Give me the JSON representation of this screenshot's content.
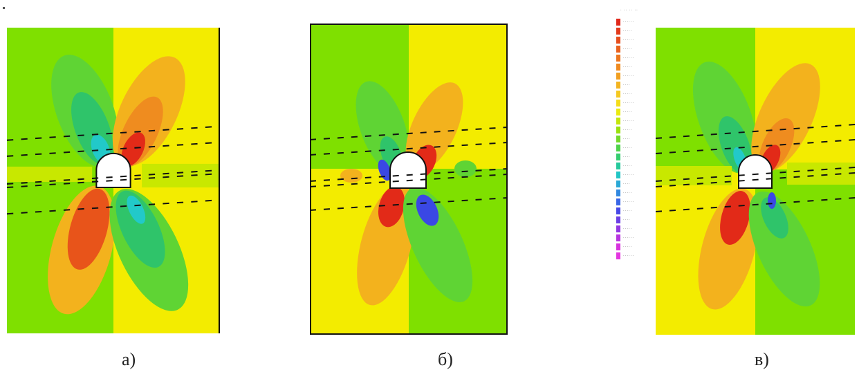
{
  "captions": {
    "a": "а)",
    "b": "б)",
    "c": "в)"
  },
  "colors": {
    "background_left": "#7fe000",
    "background_right": "#f3ec00",
    "yellow": "#f3ec00",
    "yellow_green": "#c8e800",
    "orange_light": "#f3b21d",
    "orange": "#ef8c1f",
    "red_orange": "#e8541a",
    "red": "#e22a18",
    "green": "#5fd434",
    "green_deep": "#2fc46a",
    "cyan": "#22c9c9",
    "blue": "#3a48e4",
    "magenta": "#d832e0",
    "opening": "#ffffff",
    "dashed_line": "#111111"
  },
  "legend": {
    "title": "· ·· ·· ··",
    "items": [
      {
        "color": "#e0281a",
        "label": "······"
      },
      {
        "color": "#e33a1b",
        "label": "·····"
      },
      {
        "color": "#e64d1c",
        "label": "······"
      },
      {
        "color": "#e9611d",
        "label": "·····"
      },
      {
        "color": "#ec761e",
        "label": "······"
      },
      {
        "color": "#ef8a20",
        "label": "·····"
      },
      {
        "color": "#f19f21",
        "label": "······"
      },
      {
        "color": "#f3b421",
        "label": "····"
      },
      {
        "color": "#f5c920",
        "label": "·····"
      },
      {
        "color": "#f4dd1a",
        "label": "······"
      },
      {
        "color": "#e9ea10",
        "label": "·····"
      },
      {
        "color": "#c4e60a",
        "label": "······"
      },
      {
        "color": "#9ae10c",
        "label": "·····"
      },
      {
        "color": "#72d92a",
        "label": "····"
      },
      {
        "color": "#4ed34a",
        "label": "·····"
      },
      {
        "color": "#35cd70",
        "label": "····"
      },
      {
        "color": "#26c99c",
        "label": "·····"
      },
      {
        "color": "#22c5c5",
        "label": "······"
      },
      {
        "color": "#29a8d6",
        "label": "····"
      },
      {
        "color": "#3088e0",
        "label": "·····"
      },
      {
        "color": "#3866e6",
        "label": "······"
      },
      {
        "color": "#4648e6",
        "label": "·····"
      },
      {
        "color": "#6a3ee4",
        "label": "····"
      },
      {
        "color": "#9236e2",
        "label": "·····"
      },
      {
        "color": "#b834e0",
        "label": "······"
      },
      {
        "color": "#d832de",
        "label": "·····"
      },
      {
        "color": "#e436e0",
        "label": "······"
      }
    ]
  }
}
